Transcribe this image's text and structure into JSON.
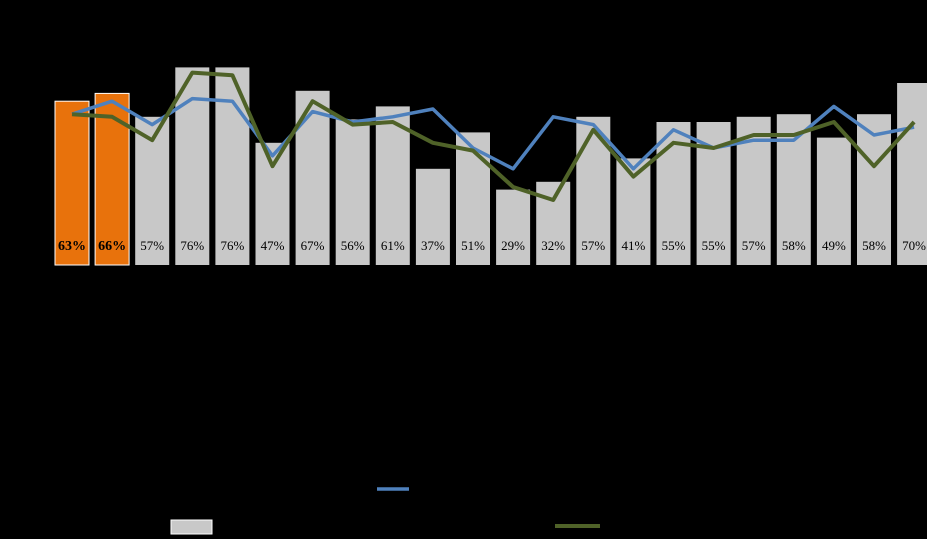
{
  "chart_data": {
    "type": "bar",
    "categories": [
      "",
      "",
      "",
      "",
      "",
      "",
      "",
      "",
      "",
      "",
      "",
      "",
      "",
      "",
      "",
      "",
      "",
      "",
      "",
      "",
      "",
      ""
    ],
    "ylim": [
      0,
      100
    ],
    "grid": false,
    "legend_placement": "bottom",
    "highlight_indices": [
      0,
      1
    ],
    "colors": {
      "background": "#000000",
      "bar": "#c8c8c8",
      "bar_highlight": "#e8720c",
      "line_blue": "#4f81bd",
      "line_green": "#4f6228"
    },
    "series": [
      {
        "type": "bar",
        "values": [
          63,
          66,
          57,
          76,
          76,
          47,
          67,
          56,
          61,
          37,
          51,
          29,
          32,
          57,
          41,
          55,
          55,
          57,
          58,
          49,
          58,
          70
        ],
        "labels": [
          "63%",
          "66%",
          "57%",
          "76%",
          "76%",
          "47%",
          "67%",
          "56%",
          "61%",
          "37%",
          "51%",
          "29%",
          "32%",
          "57%",
          "41%",
          "55%",
          "55%",
          "57%",
          "58%",
          "49%",
          "58%",
          "70%"
        ]
      },
      {
        "type": "line",
        "color": "#4f81bd",
        "values": [
          58,
          63,
          54,
          64,
          63,
          42,
          59,
          55,
          57,
          60,
          45,
          37,
          57,
          54,
          37,
          52,
          45,
          48,
          48,
          61,
          50,
          53
        ]
      },
      {
        "type": "line",
        "color": "#4f6228",
        "values": [
          58,
          57,
          48,
          74,
          73,
          38,
          63,
          54,
          55,
          47,
          44,
          30,
          25,
          52,
          34,
          47,
          45,
          50,
          50,
          55,
          38,
          55
        ]
      }
    ]
  }
}
